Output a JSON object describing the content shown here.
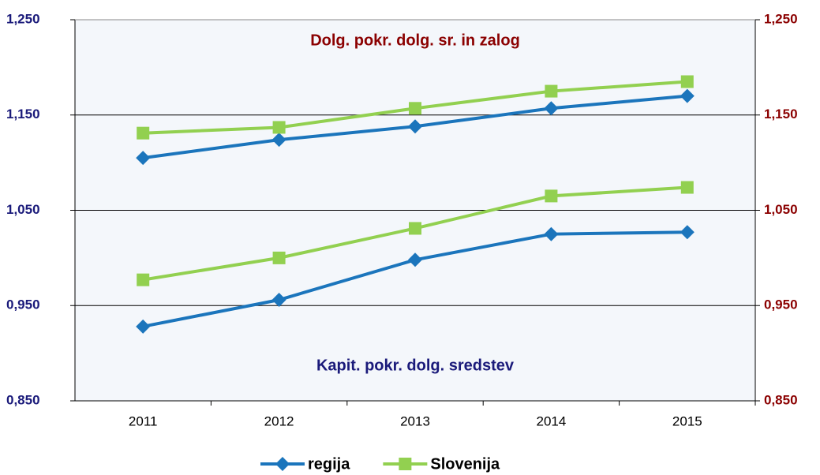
{
  "chart_data": {
    "type": "line",
    "categories": [
      "2011",
      "2012",
      "2013",
      "2014",
      "2015"
    ],
    "series": [
      {
        "name": "regija",
        "color": "#1b75bc",
        "marker": "diamond",
        "axis": "y",
        "values": [
          0.928,
          0.956,
          0.998,
          1.025,
          1.027
        ]
      },
      {
        "name": "Slovenija",
        "color": "#92d050",
        "marker": "square",
        "axis": "y",
        "values": [
          0.977,
          1.0,
          1.031,
          1.065,
          1.074
        ]
      },
      {
        "name": "regija",
        "color": "#1b75bc",
        "marker": "diamond",
        "axis": "y2",
        "values": [
          1.105,
          1.124,
          1.138,
          1.157,
          1.17
        ]
      },
      {
        "name": "Slovenija",
        "color": "#92d050",
        "marker": "square",
        "axis": "y2",
        "values": [
          1.131,
          1.137,
          1.157,
          1.175,
          1.185
        ]
      }
    ],
    "annotations": [
      {
        "text": "Dolg. pokr. dolg. sr. in zalog",
        "color": "#8b0000"
      },
      {
        "text": "Kapit. pokr. dolg. sredstev",
        "color": "#1a1a7a"
      }
    ],
    "ylim": [
      0.85,
      1.25
    ],
    "yticks": [
      {
        "value": 0.85,
        "label": "0,850"
      },
      {
        "value": 0.95,
        "label": "0,950"
      },
      {
        "value": 1.05,
        "label": "1,050"
      },
      {
        "value": 1.15,
        "label": "1,150"
      },
      {
        "value": 1.25,
        "label": "1,250"
      }
    ],
    "y2lim": [
      0.85,
      1.25
    ],
    "y2ticks": [
      {
        "value": 0.85,
        "label": "0,850"
      },
      {
        "value": 0.95,
        "label": "0,950"
      },
      {
        "value": 1.05,
        "label": "1,050"
      },
      {
        "value": 1.15,
        "label": "1,150"
      },
      {
        "value": 1.25,
        "label": "1,250"
      }
    ],
    "grid": true,
    "legend": "bottom"
  }
}
